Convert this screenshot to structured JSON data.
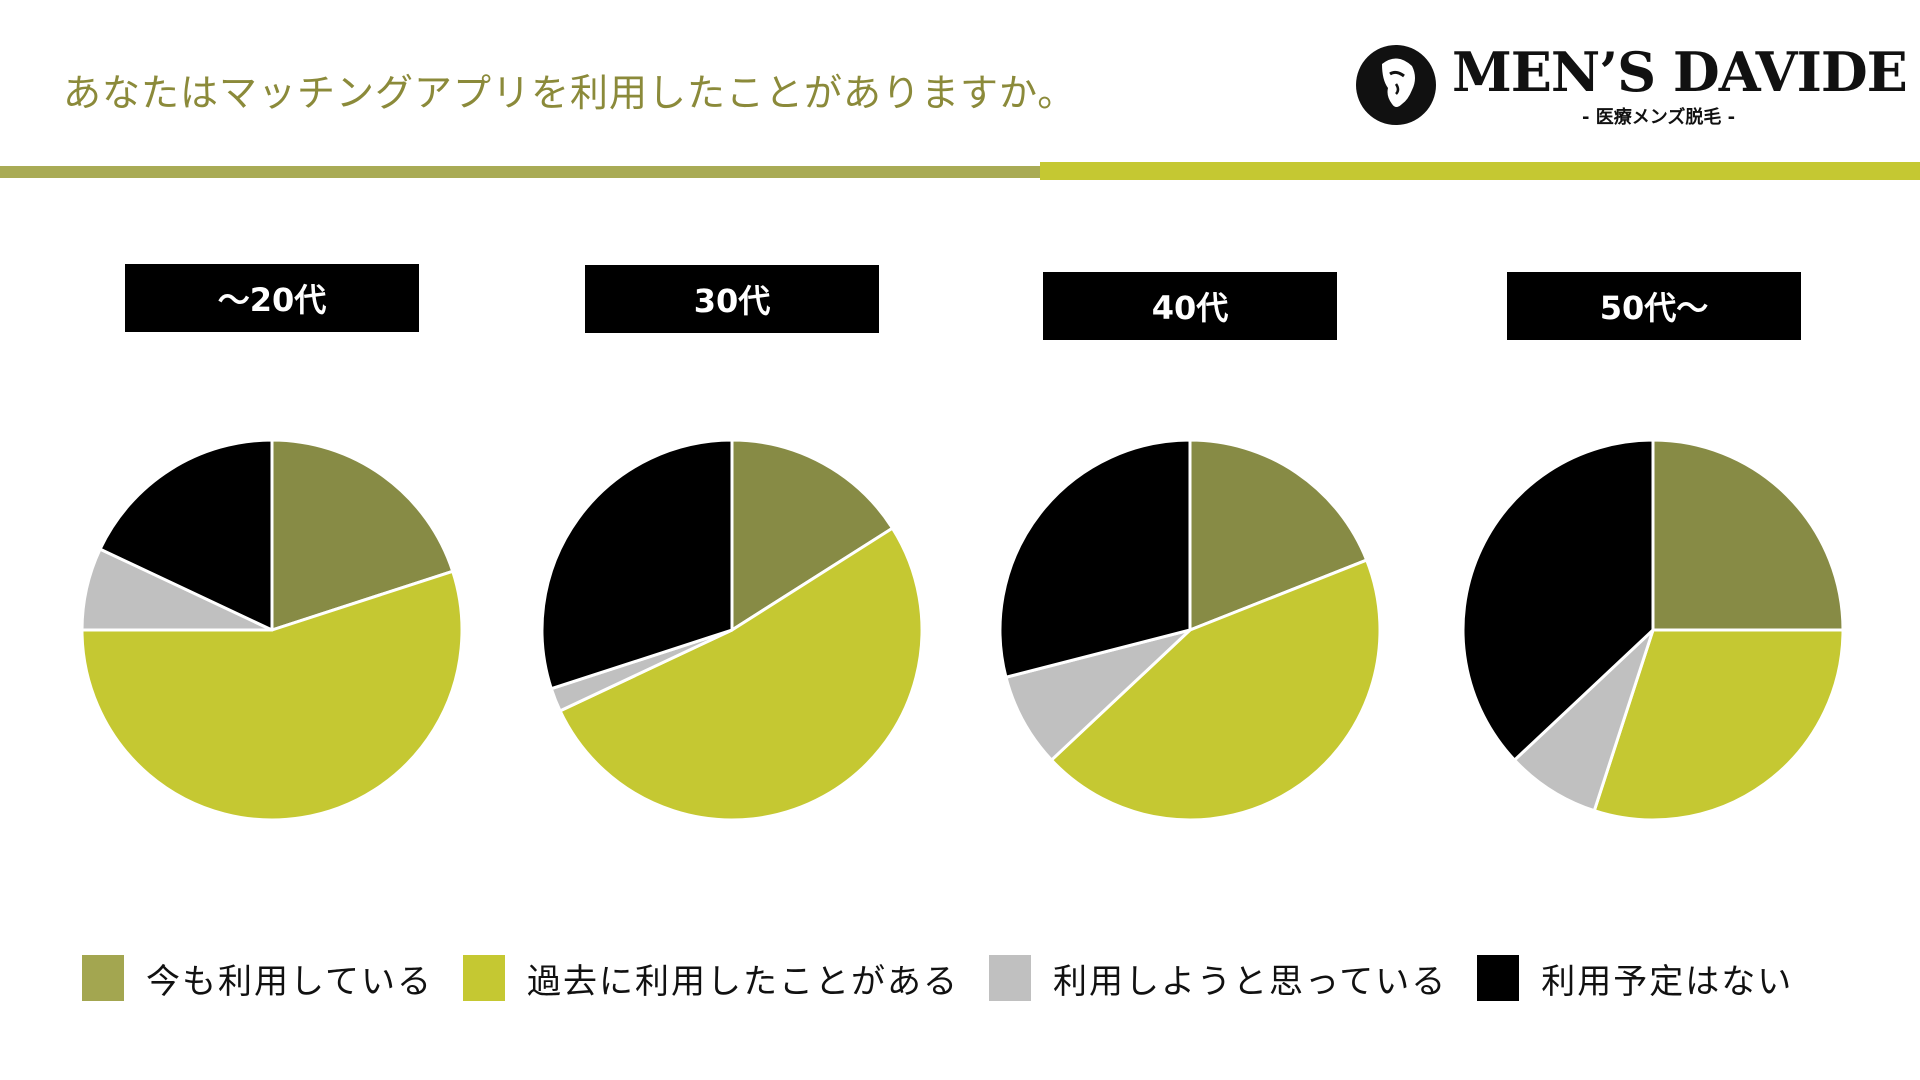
{
  "header": {
    "title": "あなたはマッチングアプリを利用したことがありますか。",
    "logo_name": "MEN’S DAVIDE",
    "logo_sub": "- 医療メンズ脱毛 -"
  },
  "colors": {
    "accent_olive": "#878b45",
    "accent_lime": "#c5c832",
    "grey": "#c0c0c0",
    "black": "#000000"
  },
  "chart_data": [
    {
      "type": "pie",
      "title": "〜20代",
      "categories": [
        "今も利用している",
        "過去に利用したことがある",
        "利用しようと思っている",
        "利用予定はない"
      ],
      "values": [
        20,
        55,
        7,
        18
      ]
    },
    {
      "type": "pie",
      "title": "30代",
      "categories": [
        "今も利用している",
        "過去に利用したことがある",
        "利用しようと思っている",
        "利用予定はない"
      ],
      "values": [
        16,
        52,
        2,
        30
      ]
    },
    {
      "type": "pie",
      "title": "40代",
      "categories": [
        "今も利用している",
        "過去に利用したことがある",
        "利用しようと思っている",
        "利用予定はない"
      ],
      "values": [
        19,
        44,
        8,
        29
      ]
    },
    {
      "type": "pie",
      "title": "50代〜",
      "categories": [
        "今も利用している",
        "過去に利用したことがある",
        "利用しようと思っている",
        "利用予定はない"
      ],
      "values": [
        25,
        30,
        8,
        37
      ]
    }
  ],
  "legend": [
    {
      "label": "今も利用している",
      "color": "#a3a650"
    },
    {
      "label": "過去に利用したことがある",
      "color": "#c5c832"
    },
    {
      "label": "利用しようと思っている",
      "color": "#c0c0c0"
    },
    {
      "label": "利用予定はない",
      "color": "#000000"
    }
  ],
  "slice_colors": [
    "#878b45",
    "#c5c832",
    "#c0c0c0",
    "#000000"
  ]
}
